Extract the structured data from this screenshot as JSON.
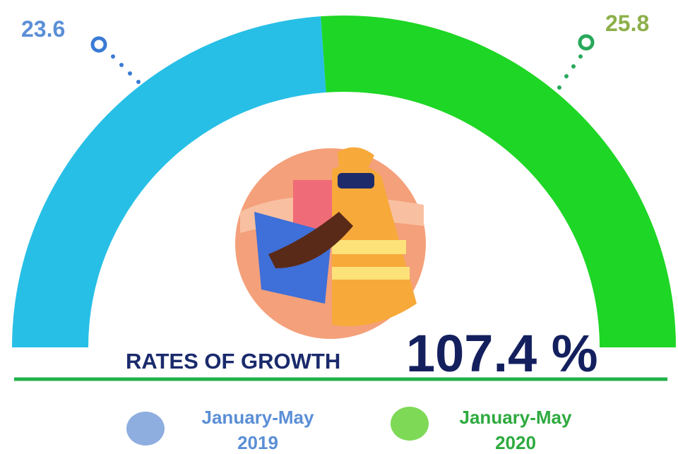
{
  "chart_data": {
    "type": "semi-donut",
    "categories": [
      "January-May 2019",
      "January-May 2020"
    ],
    "values": [
      23.6,
      25.8
    ],
    "colors": [
      "#27bfe6",
      "#1ed625"
    ],
    "annotation_label": "RATES OF GROWTH",
    "annotation_value": "107.4 %"
  }
}
